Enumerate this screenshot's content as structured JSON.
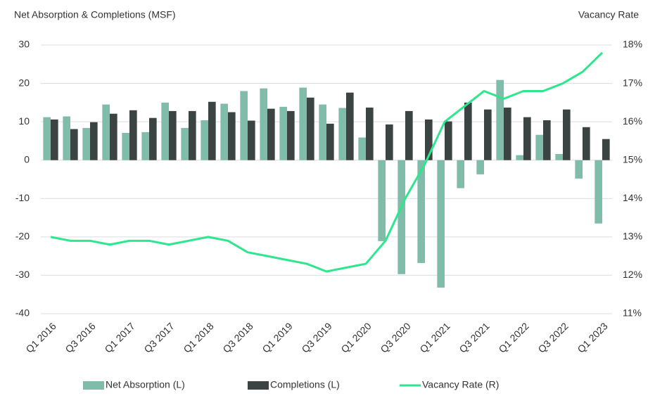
{
  "chart_data": {
    "type": "combo",
    "title": "Net Absorption & Completions (MSF)",
    "y2_title": "Vacancy Rate",
    "categories": [
      "Q1 2016",
      null,
      "Q3 2016",
      null,
      "Q1 2017",
      null,
      "Q3 2017",
      null,
      "Q1 2018",
      null,
      "Q3 2018",
      null,
      "Q1 2019",
      null,
      "Q3 2019",
      null,
      "Q1 2020",
      null,
      "Q3 2020",
      null,
      "Q1 2021",
      null,
      "Q3 2021",
      null,
      "Q1 2022",
      null,
      "Q3 2022",
      null,
      "Q1 2023"
    ],
    "series": [
      {
        "name": "Net Absorption (L)",
        "type": "bar",
        "color": "#7fbcaa",
        "values": [
          11.2,
          11.4,
          8.4,
          14.5,
          7.1,
          7.3,
          15.0,
          8.4,
          10.4,
          14.7,
          18.0,
          18.7,
          13.9,
          18.9,
          14.5,
          13.6,
          5.9,
          -21.1,
          -29.7,
          -26.8,
          -33.2,
          -7.3,
          -3.7,
          20.9,
          1.3,
          6.6,
          1.6,
          -4.8,
          -16.5
        ]
      },
      {
        "name": "Completions (L)",
        "type": "bar",
        "color": "#3b4442",
        "values": [
          10.6,
          8.1,
          9.9,
          12.1,
          13.0,
          11.0,
          12.8,
          12.8,
          15.2,
          12.5,
          10.3,
          13.4,
          12.8,
          16.3,
          9.5,
          17.6,
          13.7,
          9.3,
          12.8,
          10.6,
          10.1,
          15.0,
          13.2,
          13.7,
          11.2,
          10.4,
          13.2,
          8.6,
          5.5
        ]
      },
      {
        "name": "Vacancy Rate (R)",
        "type": "line",
        "axis": "y2",
        "color": "#2ee68e",
        "values": [
          13.0,
          12.9,
          12.9,
          12.8,
          12.9,
          12.9,
          12.8,
          12.9,
          13.0,
          12.9,
          12.6,
          12.5,
          12.4,
          12.3,
          12.1,
          12.2,
          12.3,
          12.9,
          14.0,
          14.9,
          16.0,
          16.4,
          16.8,
          16.6,
          16.8,
          16.8,
          17.0,
          17.3,
          17.8
        ]
      }
    ],
    "ylim": [
      -40,
      30
    ],
    "yticks": [
      -40,
      -30,
      -20,
      -10,
      0,
      10,
      20,
      30
    ],
    "y2lim": [
      11,
      18
    ],
    "y2ticks": [
      {
        "value": 11,
        "label": "11%"
      },
      {
        "value": 12,
        "label": "12%"
      },
      {
        "value": 13,
        "label": "13%"
      },
      {
        "value": 14,
        "label": "14%"
      },
      {
        "value": 15,
        "label": "15%"
      },
      {
        "value": 16,
        "label": "16%"
      },
      {
        "value": 17,
        "label": "17%"
      },
      {
        "value": 18,
        "label": "18%"
      }
    ],
    "grid": true,
    "legend": "bottom"
  }
}
